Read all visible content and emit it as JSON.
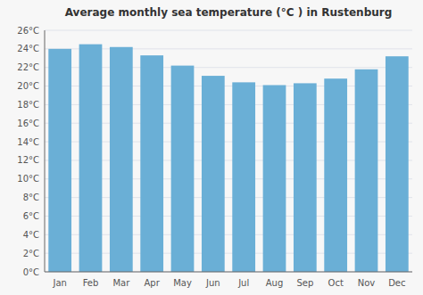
{
  "chart_data": {
    "type": "bar",
    "title": "Average monthly sea temperature (°C ) in Rustenburg",
    "categories": [
      "Jan",
      "Feb",
      "Mar",
      "Apr",
      "May",
      "Jun",
      "Jul",
      "Aug",
      "Sep",
      "Oct",
      "Nov",
      "Dec"
    ],
    "values": [
      24.0,
      24.5,
      24.2,
      23.3,
      22.2,
      21.1,
      20.4,
      20.1,
      20.3,
      20.8,
      21.8,
      23.2
    ],
    "color": "#6aafd6",
    "ylim": [
      0,
      26
    ],
    "yticks": [
      {
        "value": 0,
        "label": "0°C"
      },
      {
        "value": 2,
        "label": "2°C"
      },
      {
        "value": 4,
        "label": "4°C"
      },
      {
        "value": 6,
        "label": "6°C"
      },
      {
        "value": 8,
        "label": "8°C"
      },
      {
        "value": 10,
        "label": "10°C"
      },
      {
        "value": 12,
        "label": "12°C"
      },
      {
        "value": 14,
        "label": "14°C"
      },
      {
        "value": 16,
        "label": "16°C"
      },
      {
        "value": 18,
        "label": "18°C"
      },
      {
        "value": 20,
        "label": "20°C"
      },
      {
        "value": 22,
        "label": "22°C"
      },
      {
        "value": 24,
        "label": "24°C"
      },
      {
        "value": 26,
        "label": "26°C"
      }
    ],
    "grid": true
  }
}
